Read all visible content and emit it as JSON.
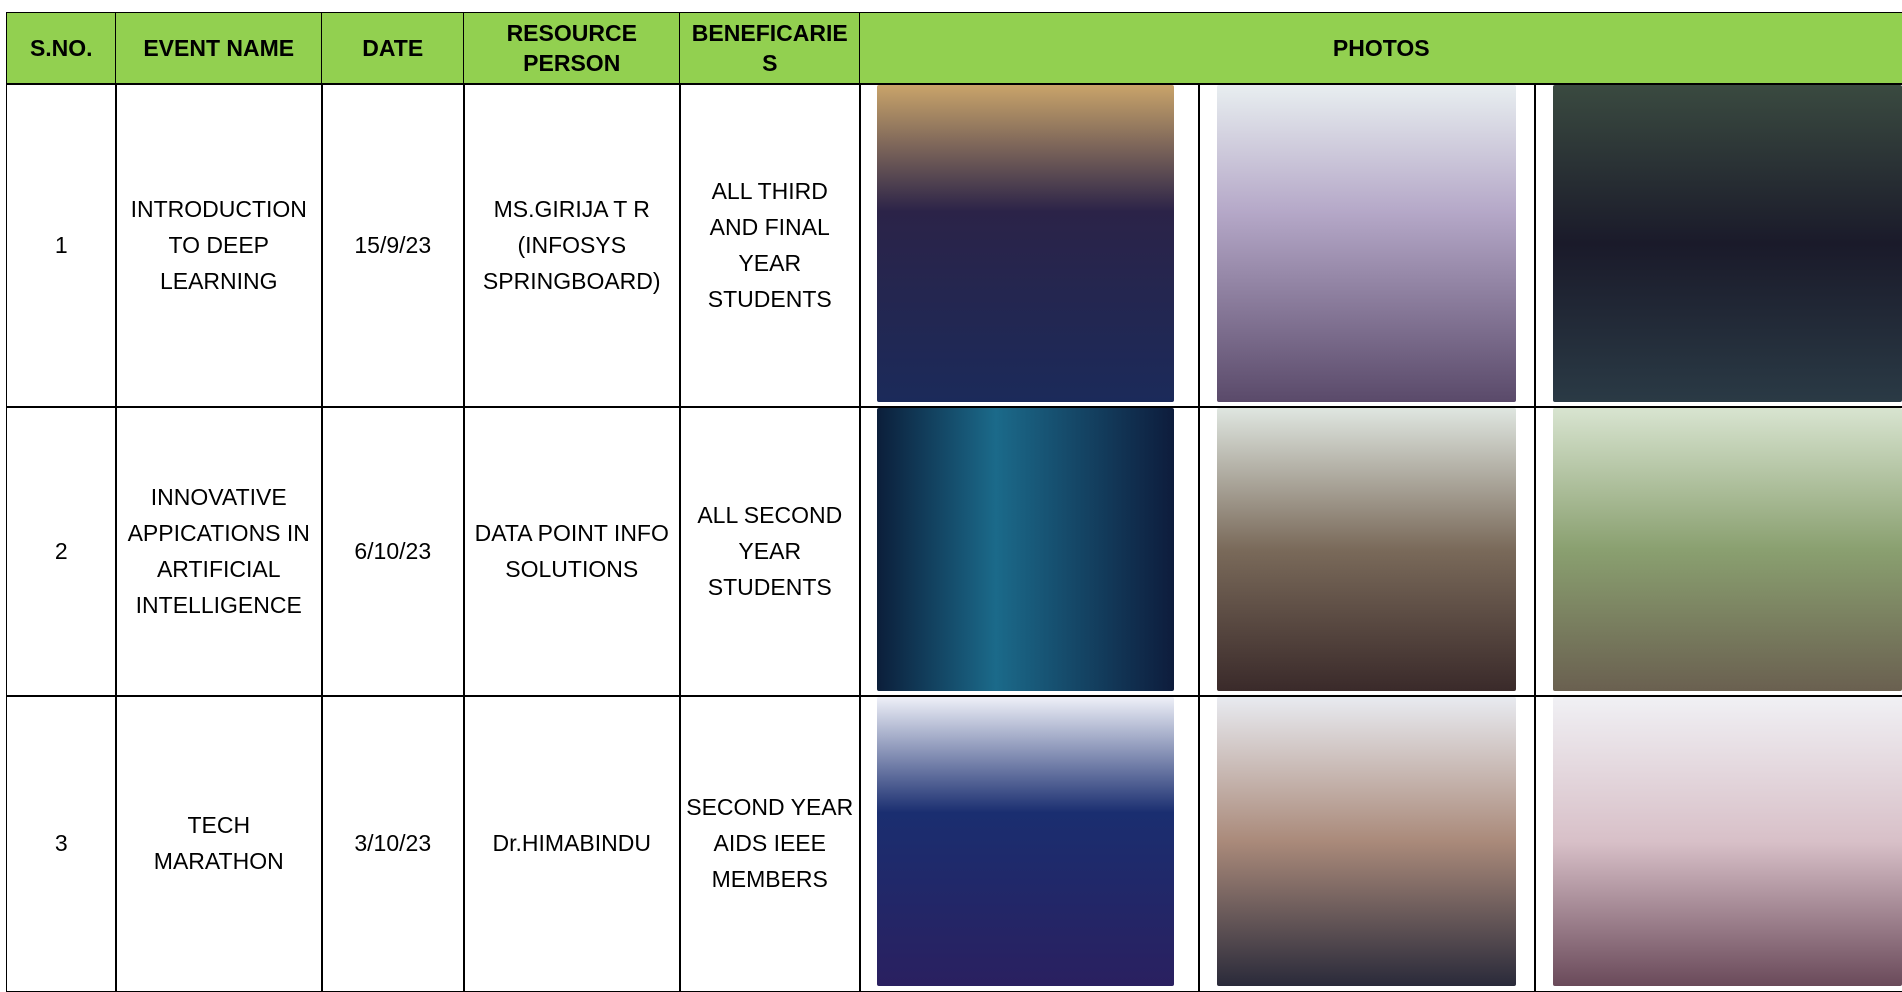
{
  "header": {
    "sno": "S.NO.",
    "event": "EVENT NAME",
    "date": "DATE",
    "resource": "RESOURCE PERSON",
    "beneficiaries": "BENEFICARIES",
    "photos": "PHOTOS"
  },
  "table": {
    "rows": [
      [
        "1",
        "INTRODUCTION TO DEEP LEARNING",
        "15/9/23",
        "MS.GIRIJA T R (INFOSYS SPRINGBOARD)",
        "ALL THIRD AND FINAL YEAR STUDENTS"
      ],
      [
        "2",
        "INNOVATIVE APPICATIONS IN ARTIFICIAL INTELLIGENCE",
        "6/10/23",
        "DATA POINT INFO SOLUTIONS",
        "ALL SECOND YEAR STUDENTS"
      ],
      [
        "3",
        "TECH MARATHON",
        "3/10/23",
        "Dr.HIMABINDU",
        "SECOND YEAR AIDS IEEE MEMBERS"
      ]
    ]
  }
}
